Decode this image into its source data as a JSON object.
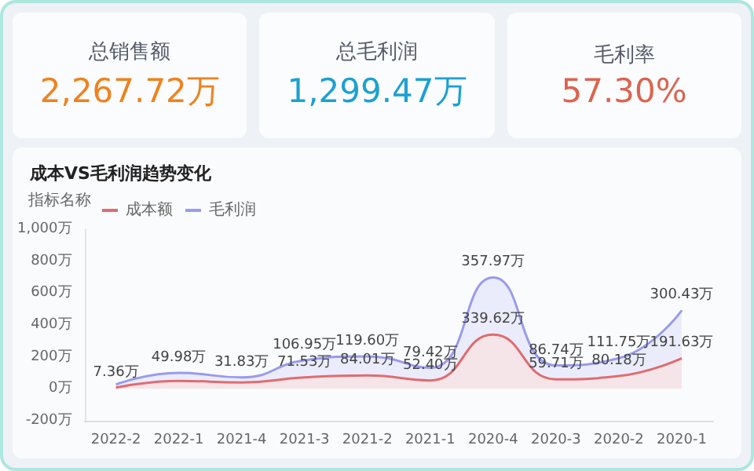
{
  "chart_data": [
    {
      "type": "other",
      "title": "总销售额",
      "annotations": [
        "2,267.72万"
      ],
      "color": "#f0821e"
    },
    {
      "type": "other",
      "title": "总毛利润",
      "annotations": [
        "1,299.47万"
      ],
      "color": "#1ea0d2"
    },
    {
      "type": "other",
      "title": "毛利率",
      "annotations": [
        "57.30%"
      ],
      "color": "#dc6450"
    },
    {
      "type": "area",
      "title": "成本VS毛利润趋势变化",
      "legend_title": "指标名称",
      "legend": "top left",
      "stacked": true,
      "grid": false,
      "categories": [
        "2022-2",
        "2022-1",
        "2021-4",
        "2021-3",
        "2021-2",
        "2021-1",
        "2020-4",
        "2020-3",
        "2020-2",
        "2020-1"
      ],
      "series": [
        {
          "name": "成本额",
          "color": "#e06c70",
          "values": [
            7.36,
            50,
            40,
            71.53,
            84.01,
            52.4,
            339.62,
            59.71,
            80.18,
            191.63
          ],
          "value_labels": [
            "7.36万",
            null,
            null,
            "71.53万",
            "84.01万",
            "52.40万",
            "339.62万",
            "59.71万",
            "80.18万",
            "191.63万"
          ]
        },
        {
          "name": "毛利润",
          "color": "#9a9af0",
          "values": [
            20,
            49.98,
            31.83,
            106.95,
            119.6,
            79.42,
            357.97,
            86.74,
            111.75,
            300.43
          ],
          "value_labels": [
            null,
            "49.98万",
            "31.83万",
            "106.95万",
            "119.60万",
            "79.42万",
            "357.97万",
            "86.74万",
            "111.75万",
            "300.43万"
          ]
        }
      ],
      "ylim": [
        -200,
        1000
      ],
      "yticks": [
        {
          "value": -200,
          "label": "-200万"
        },
        {
          "value": 0,
          "label": "0万"
        },
        {
          "value": 200,
          "label": "200万"
        },
        {
          "value": 400,
          "label": "400万"
        },
        {
          "value": 600,
          "label": "600万"
        },
        {
          "value": 800,
          "label": "800万"
        },
        {
          "value": 1000,
          "label": "1,000万"
        }
      ]
    }
  ]
}
